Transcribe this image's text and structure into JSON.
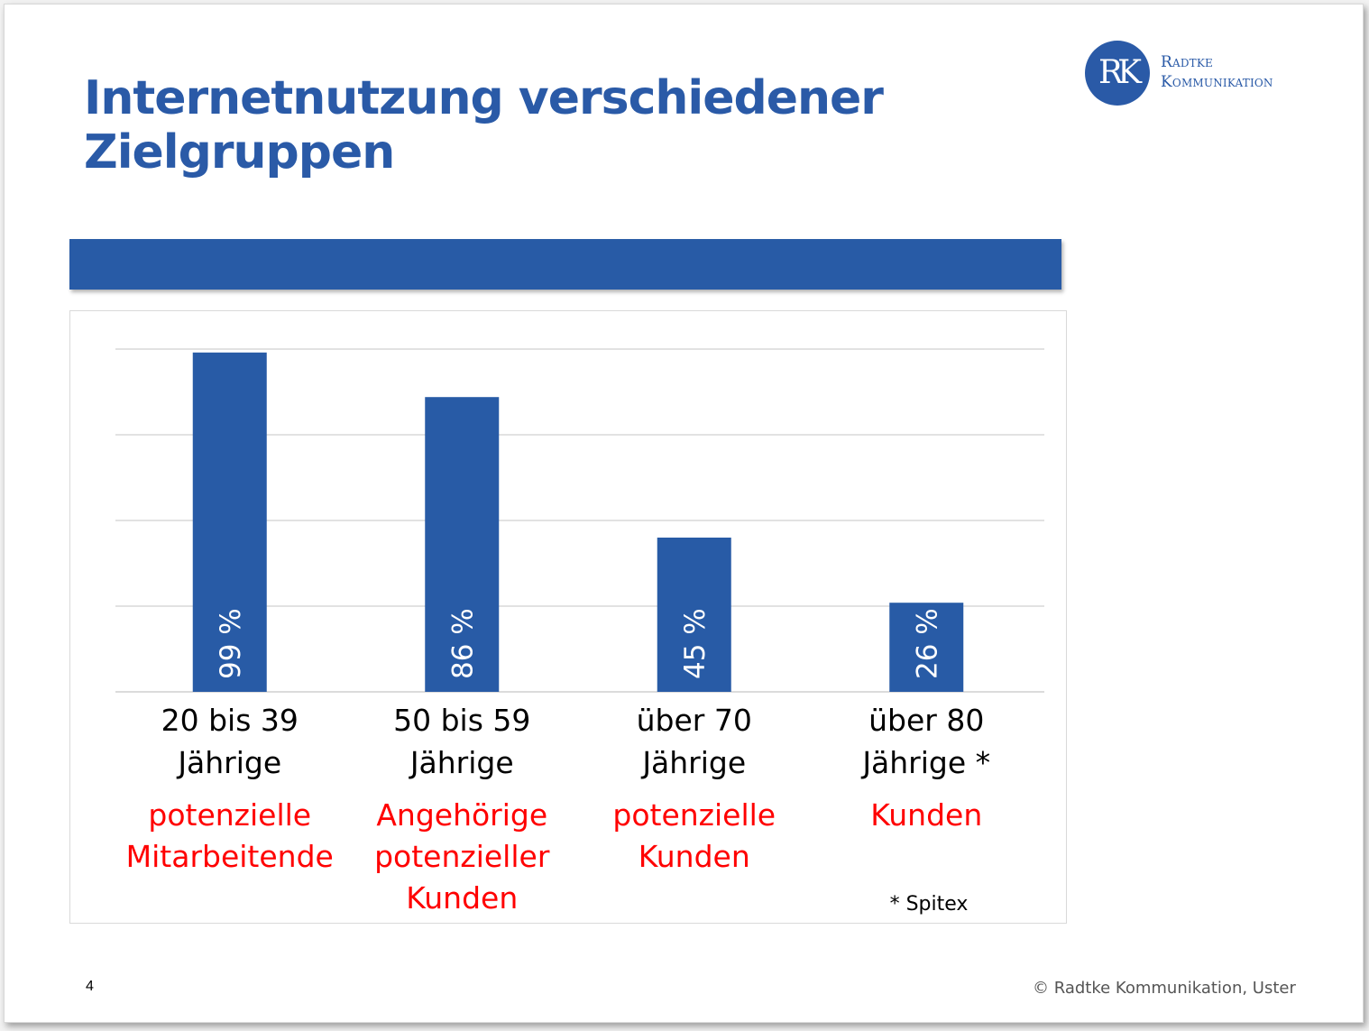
{
  "slide": {
    "title": "Internetnutzung verschiedener Zielgruppen",
    "page_number": "4",
    "copyright": "© Radtke Kommunikation, Uster",
    "logo": {
      "monogram": "RK",
      "name_line1": "Radtke",
      "name_line2": "Kommunikation"
    },
    "colors": {
      "brand": "#2a5aa7",
      "bar": "#285ba6",
      "audience_text": "#ff0000"
    }
  },
  "chart_data": {
    "type": "bar",
    "categories": [
      {
        "line1": "20 bis 39",
        "line2": "Jährige",
        "audience": [
          "potenzielle",
          "Mitarbeitende"
        ]
      },
      {
        "line1": "50 bis 59",
        "line2": "Jährige",
        "audience": [
          "Angehörige",
          "potenzieller",
          "Kunden"
        ]
      },
      {
        "line1": "über 70",
        "line2": "Jährige",
        "audience": [
          "potenzielle",
          "Kunden"
        ]
      },
      {
        "line1": "über 80",
        "line2": "Jährige *",
        "audience": [
          "Kunden"
        ]
      }
    ],
    "values": [
      99,
      86,
      45,
      26
    ],
    "data_labels": [
      "99 %",
      "86 %",
      "45 %",
      "26 %"
    ],
    "ylim": [
      0,
      100
    ],
    "grid": true,
    "footnote": "* Spitex"
  }
}
